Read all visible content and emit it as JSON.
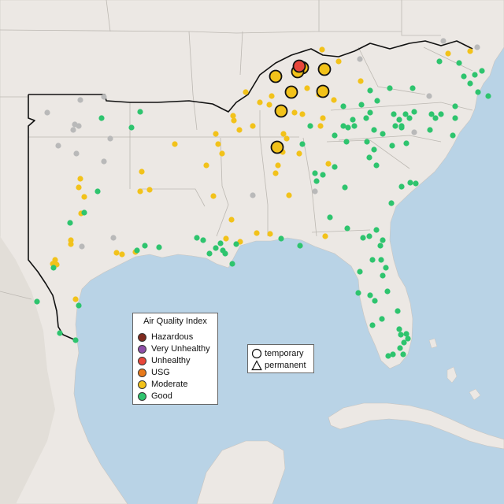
{
  "legend": {
    "title": "Air Quality Index",
    "items": [
      {
        "label": "Hazardous",
        "color": "#7e2a1e"
      },
      {
        "label": "Very Unhealthy",
        "color": "#8e4fa8"
      },
      {
        "label": "Unhealthy",
        "color": "#e8473b"
      },
      {
        "label": "USG",
        "color": "#e87a1c"
      },
      {
        "label": "Moderate",
        "color": "#f2c21a"
      },
      {
        "label": "Good",
        "color": "#2ec46e"
      }
    ],
    "no_data_color": "#b9b9b9"
  },
  "shape_legend": {
    "items": [
      {
        "label": "temporary",
        "icon": "circle-icon"
      },
      {
        "label": "permanent",
        "icon": "triangle-icon"
      }
    ]
  },
  "colors": {
    "ocean": "#b9d3e6",
    "land": "#ece8e4",
    "border": "#111111"
  }
}
